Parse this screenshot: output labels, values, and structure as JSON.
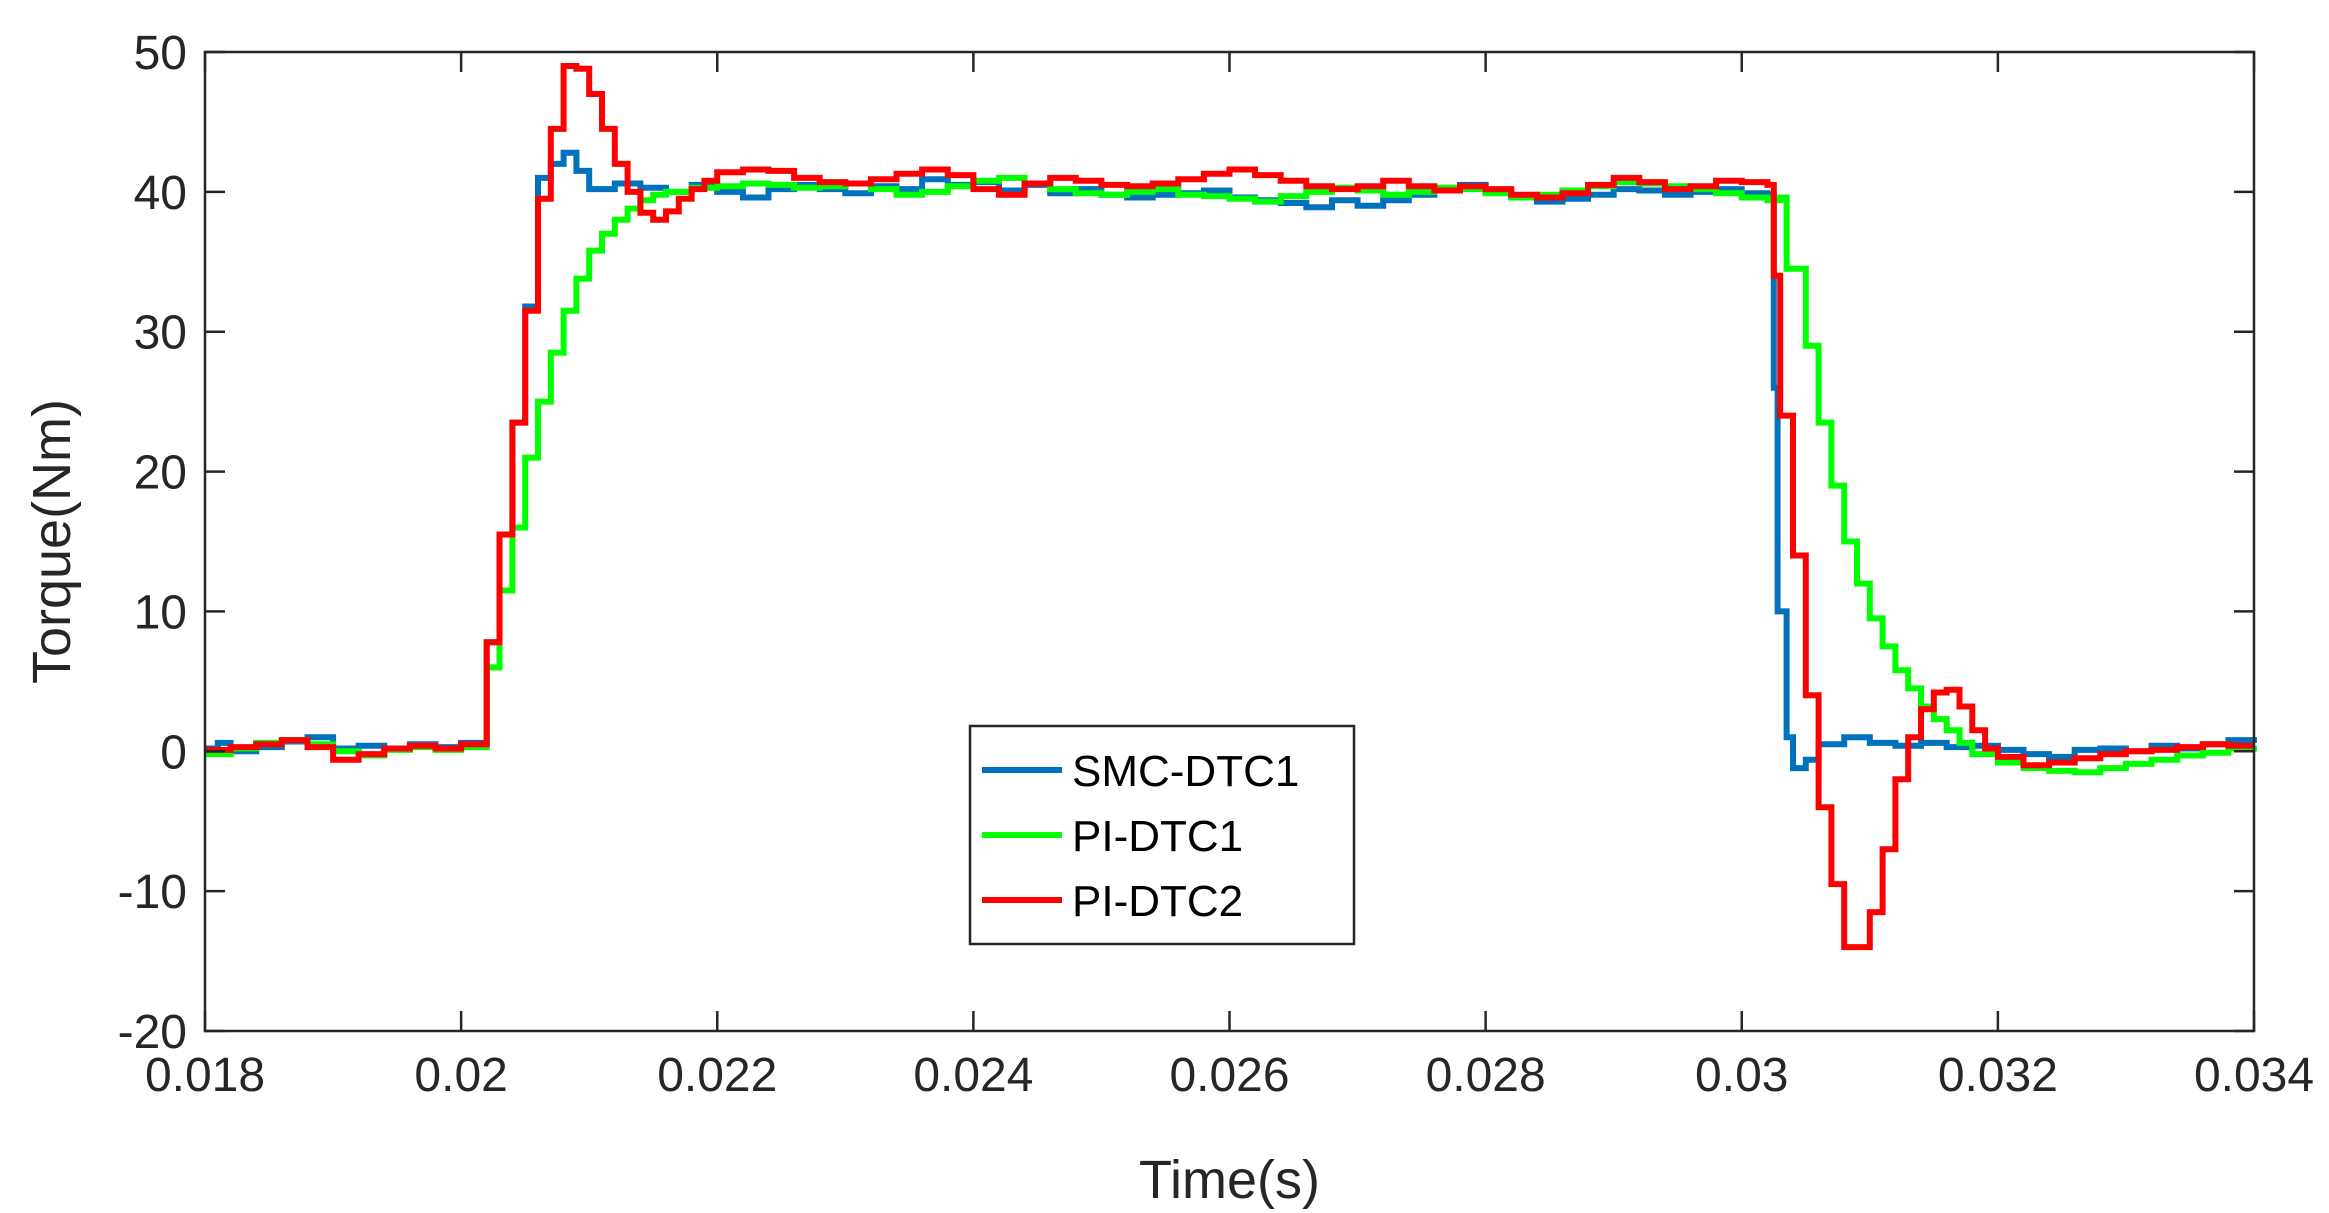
{
  "chart_data": {
    "type": "line",
    "title": "",
    "xlabel": "Time(s)",
    "ylabel": "Torque(Nm)",
    "xlim": [
      0.018,
      0.034
    ],
    "ylim": [
      -20,
      50
    ],
    "grid": false,
    "legend_position": "center",
    "xticks": [
      0.018,
      0.02,
      0.022,
      0.024,
      0.026,
      0.028,
      0.03,
      0.032,
      0.034
    ],
    "xtick_labels": [
      "0.018",
      "0.02",
      "0.022",
      "0.024",
      "0.026",
      "0.028",
      "0.03",
      "0.032",
      "0.034"
    ],
    "yticks": [
      -20,
      -10,
      0,
      10,
      20,
      30,
      40,
      50
    ],
    "ytick_labels": [
      "-20",
      "-10",
      "0",
      "10",
      "20",
      "30",
      "40",
      "50"
    ],
    "series": [
      {
        "name": "SMC-DTC1",
        "color": "#0072BD",
        "points": [
          [
            0.018,
            0.2
          ],
          [
            0.0181,
            0.6
          ],
          [
            0.0182,
            0.0
          ],
          [
            0.0184,
            0.3
          ],
          [
            0.0186,
            0.7
          ],
          [
            0.0188,
            1.0
          ],
          [
            0.019,
            0.2
          ],
          [
            0.0192,
            0.4
          ],
          [
            0.0194,
            0.2
          ],
          [
            0.0196,
            0.5
          ],
          [
            0.0198,
            0.3
          ],
          [
            0.02,
            0.6
          ],
          [
            0.0202,
            0.8
          ],
          [
            0.0202,
            7.8
          ],
          [
            0.0203,
            15.5
          ],
          [
            0.0204,
            23.5
          ],
          [
            0.0205,
            31.8
          ],
          [
            0.0206,
            41.0
          ],
          [
            0.0207,
            42.0
          ],
          [
            0.0208,
            42.8
          ],
          [
            0.0209,
            41.5
          ],
          [
            0.021,
            40.2
          ],
          [
            0.0212,
            40.6
          ],
          [
            0.0214,
            40.3
          ],
          [
            0.0216,
            40.0
          ],
          [
            0.0218,
            40.5
          ],
          [
            0.022,
            40.0
          ],
          [
            0.0222,
            39.6
          ],
          [
            0.0224,
            40.2
          ],
          [
            0.0226,
            40.5
          ],
          [
            0.0228,
            40.2
          ],
          [
            0.023,
            39.9
          ],
          [
            0.0232,
            40.4
          ],
          [
            0.0234,
            40.2
          ],
          [
            0.0236,
            40.9
          ],
          [
            0.0238,
            40.5
          ],
          [
            0.024,
            40.7
          ],
          [
            0.0242,
            40.1
          ],
          [
            0.0244,
            40.5
          ],
          [
            0.0246,
            39.9
          ],
          [
            0.0248,
            40.2
          ],
          [
            0.025,
            39.8
          ],
          [
            0.0252,
            39.6
          ],
          [
            0.0254,
            39.8
          ],
          [
            0.0256,
            39.9
          ],
          [
            0.0258,
            40.1
          ],
          [
            0.026,
            39.6
          ],
          [
            0.0262,
            39.4
          ],
          [
            0.0264,
            39.2
          ],
          [
            0.0266,
            38.9
          ],
          [
            0.0268,
            39.4
          ],
          [
            0.027,
            39.0
          ],
          [
            0.0272,
            39.4
          ],
          [
            0.0274,
            39.8
          ],
          [
            0.0276,
            40.2
          ],
          [
            0.0278,
            40.5
          ],
          [
            0.028,
            40.0
          ],
          [
            0.0282,
            39.6
          ],
          [
            0.0284,
            39.3
          ],
          [
            0.0286,
            39.5
          ],
          [
            0.0288,
            39.8
          ],
          [
            0.029,
            40.2
          ],
          [
            0.0292,
            40.1
          ],
          [
            0.0294,
            39.8
          ],
          [
            0.0296,
            40.0
          ],
          [
            0.0298,
            40.2
          ],
          [
            0.03,
            39.9
          ],
          [
            0.0302,
            39.8
          ],
          [
            0.03025,
            26.0
          ],
          [
            0.03028,
            10.0
          ],
          [
            0.03035,
            1.0
          ],
          [
            0.0304,
            -1.2
          ],
          [
            0.0305,
            -0.6
          ],
          [
            0.0306,
            0.5
          ],
          [
            0.0308,
            1.0
          ],
          [
            0.031,
            0.6
          ],
          [
            0.0312,
            0.4
          ],
          [
            0.0314,
            0.6
          ],
          [
            0.0316,
            0.3
          ],
          [
            0.0318,
            0.4
          ],
          [
            0.032,
            0.1
          ],
          [
            0.0322,
            -0.2
          ],
          [
            0.0324,
            -0.4
          ],
          [
            0.0326,
            0.1
          ],
          [
            0.0328,
            0.2
          ],
          [
            0.033,
            0.0
          ],
          [
            0.0332,
            0.4
          ],
          [
            0.0334,
            0.2
          ],
          [
            0.0336,
            0.5
          ],
          [
            0.0338,
            0.8
          ],
          [
            0.034,
            0.6
          ]
        ]
      },
      {
        "name": "PI-DTC1",
        "color": "#00FF00",
        "points": [
          [
            0.018,
            -0.2
          ],
          [
            0.0182,
            0.2
          ],
          [
            0.0184,
            0.6
          ],
          [
            0.0186,
            0.8
          ],
          [
            0.0188,
            0.5
          ],
          [
            0.019,
            0.0
          ],
          [
            0.0192,
            -0.3
          ],
          [
            0.0194,
            0.1
          ],
          [
            0.0196,
            0.3
          ],
          [
            0.0198,
            0.1
          ],
          [
            0.02,
            0.3
          ],
          [
            0.0202,
            0.5
          ],
          [
            0.0202,
            6.0
          ],
          [
            0.0203,
            11.5
          ],
          [
            0.0204,
            16.0
          ],
          [
            0.0205,
            21.0
          ],
          [
            0.0206,
            25.0
          ],
          [
            0.0207,
            28.5
          ],
          [
            0.0208,
            31.5
          ],
          [
            0.0209,
            33.8
          ],
          [
            0.021,
            35.8
          ],
          [
            0.0211,
            37.0
          ],
          [
            0.0212,
            38.0
          ],
          [
            0.0213,
            38.8
          ],
          [
            0.0214,
            39.4
          ],
          [
            0.0215,
            39.8
          ],
          [
            0.0216,
            40.0
          ],
          [
            0.0218,
            40.3
          ],
          [
            0.022,
            40.4
          ],
          [
            0.0222,
            40.6
          ],
          [
            0.0224,
            40.5
          ],
          [
            0.0226,
            40.3
          ],
          [
            0.0228,
            40.4
          ],
          [
            0.023,
            40.6
          ],
          [
            0.0232,
            40.2
          ],
          [
            0.0234,
            39.8
          ],
          [
            0.0236,
            40.0
          ],
          [
            0.0238,
            40.4
          ],
          [
            0.024,
            40.8
          ],
          [
            0.0242,
            41.0
          ],
          [
            0.0244,
            40.6
          ],
          [
            0.0246,
            40.2
          ],
          [
            0.0248,
            39.9
          ],
          [
            0.025,
            39.8
          ],
          [
            0.0252,
            40.0
          ],
          [
            0.0254,
            40.2
          ],
          [
            0.0256,
            39.8
          ],
          [
            0.0258,
            39.7
          ],
          [
            0.026,
            39.5
          ],
          [
            0.0262,
            39.3
          ],
          [
            0.0264,
            39.7
          ],
          [
            0.0266,
            40.0
          ],
          [
            0.0268,
            40.3
          ],
          [
            0.027,
            40.1
          ],
          [
            0.0272,
            39.8
          ],
          [
            0.0274,
            40.0
          ],
          [
            0.0276,
            40.3
          ],
          [
            0.0278,
            40.2
          ],
          [
            0.028,
            39.9
          ],
          [
            0.0282,
            39.6
          ],
          [
            0.0284,
            39.8
          ],
          [
            0.0286,
            40.1
          ],
          [
            0.0288,
            40.4
          ],
          [
            0.029,
            40.7
          ],
          [
            0.0292,
            40.6
          ],
          [
            0.0294,
            40.4
          ],
          [
            0.0296,
            40.2
          ],
          [
            0.0298,
            39.9
          ],
          [
            0.03,
            39.6
          ],
          [
            0.0302,
            39.4
          ],
          [
            0.0303,
            39.6
          ],
          [
            0.03035,
            34.5
          ],
          [
            0.0305,
            29.0
          ],
          [
            0.0306,
            23.5
          ],
          [
            0.0307,
            19.0
          ],
          [
            0.0308,
            15.0
          ],
          [
            0.0309,
            12.0
          ],
          [
            0.031,
            9.5
          ],
          [
            0.0311,
            7.5
          ],
          [
            0.0312,
            5.8
          ],
          [
            0.0313,
            4.5
          ],
          [
            0.0314,
            3.2
          ],
          [
            0.0315,
            2.3
          ],
          [
            0.0316,
            1.5
          ],
          [
            0.0317,
            0.6
          ],
          [
            0.0318,
            -0.2
          ],
          [
            0.032,
            -0.8
          ],
          [
            0.0322,
            -1.2
          ],
          [
            0.0324,
            -1.4
          ],
          [
            0.0326,
            -1.5
          ],
          [
            0.0328,
            -1.2
          ],
          [
            0.033,
            -0.9
          ],
          [
            0.0332,
            -0.6
          ],
          [
            0.0334,
            -0.3
          ],
          [
            0.0336,
            -0.1
          ],
          [
            0.0338,
            0.2
          ],
          [
            0.034,
            0.4
          ]
        ]
      },
      {
        "name": "PI-DTC2",
        "color": "#FF0000",
        "points": [
          [
            0.018,
            0.1
          ],
          [
            0.0182,
            0.3
          ],
          [
            0.0184,
            0.5
          ],
          [
            0.0186,
            0.8
          ],
          [
            0.0188,
            0.3
          ],
          [
            0.019,
            -0.6
          ],
          [
            0.0192,
            -0.2
          ],
          [
            0.0194,
            0.2
          ],
          [
            0.0196,
            0.4
          ],
          [
            0.0198,
            0.2
          ],
          [
            0.02,
            0.5
          ],
          [
            0.0202,
            0.8
          ],
          [
            0.0202,
            7.8
          ],
          [
            0.0203,
            15.5
          ],
          [
            0.0204,
            23.5
          ],
          [
            0.0205,
            31.5
          ],
          [
            0.0206,
            39.5
          ],
          [
            0.0207,
            44.5
          ],
          [
            0.0208,
            49.0
          ],
          [
            0.0209,
            48.8
          ],
          [
            0.021,
            47.0
          ],
          [
            0.0211,
            44.5
          ],
          [
            0.0212,
            42.0
          ],
          [
            0.0213,
            40.0
          ],
          [
            0.0214,
            38.5
          ],
          [
            0.0215,
            38.0
          ],
          [
            0.0216,
            38.6
          ],
          [
            0.0217,
            39.5
          ],
          [
            0.0218,
            40.2
          ],
          [
            0.0219,
            40.8
          ],
          [
            0.022,
            41.4
          ],
          [
            0.0222,
            41.6
          ],
          [
            0.0224,
            41.5
          ],
          [
            0.0226,
            41.0
          ],
          [
            0.0228,
            40.7
          ],
          [
            0.023,
            40.6
          ],
          [
            0.0232,
            40.9
          ],
          [
            0.0234,
            41.3
          ],
          [
            0.0236,
            41.6
          ],
          [
            0.0238,
            41.2
          ],
          [
            0.024,
            40.2
          ],
          [
            0.0242,
            39.8
          ],
          [
            0.0244,
            40.6
          ],
          [
            0.0246,
            41.0
          ],
          [
            0.0248,
            40.8
          ],
          [
            0.025,
            40.5
          ],
          [
            0.0252,
            40.4
          ],
          [
            0.0254,
            40.6
          ],
          [
            0.0256,
            40.9
          ],
          [
            0.0258,
            41.3
          ],
          [
            0.026,
            41.6
          ],
          [
            0.0262,
            41.2
          ],
          [
            0.0264,
            40.8
          ],
          [
            0.0266,
            40.4
          ],
          [
            0.0268,
            40.2
          ],
          [
            0.027,
            40.4
          ],
          [
            0.0272,
            40.8
          ],
          [
            0.0274,
            40.4
          ],
          [
            0.0276,
            40.1
          ],
          [
            0.0278,
            40.4
          ],
          [
            0.028,
            40.2
          ],
          [
            0.0282,
            39.8
          ],
          [
            0.0284,
            39.6
          ],
          [
            0.0286,
            39.9
          ],
          [
            0.0288,
            40.5
          ],
          [
            0.029,
            41.0
          ],
          [
            0.0292,
            40.7
          ],
          [
            0.0294,
            40.2
          ],
          [
            0.0296,
            40.4
          ],
          [
            0.0298,
            40.8
          ],
          [
            0.03,
            40.7
          ],
          [
            0.0302,
            40.5
          ],
          [
            0.03025,
            34.0
          ],
          [
            0.0303,
            24.0
          ],
          [
            0.0304,
            14.0
          ],
          [
            0.0305,
            4.0
          ],
          [
            0.0306,
            -4.0
          ],
          [
            0.0307,
            -9.5
          ],
          [
            0.0308,
            -14.0
          ],
          [
            0.0309,
            -14.0
          ],
          [
            0.031,
            -11.5
          ],
          [
            0.0311,
            -7.0
          ],
          [
            0.0312,
            -2.0
          ],
          [
            0.0313,
            1.0
          ],
          [
            0.0314,
            3.0
          ],
          [
            0.0315,
            4.2
          ],
          [
            0.0316,
            4.4
          ],
          [
            0.0317,
            3.2
          ],
          [
            0.0318,
            1.5
          ],
          [
            0.0319,
            0.2
          ],
          [
            0.032,
            -0.4
          ],
          [
            0.0322,
            -1.0
          ],
          [
            0.0324,
            -0.8
          ],
          [
            0.0326,
            -0.5
          ],
          [
            0.0328,
            -0.2
          ],
          [
            0.033,
            0.0
          ],
          [
            0.0332,
            0.1
          ],
          [
            0.0334,
            0.3
          ],
          [
            0.0336,
            0.5
          ],
          [
            0.0338,
            0.4
          ],
          [
            0.034,
            0.4
          ]
        ]
      }
    ]
  }
}
